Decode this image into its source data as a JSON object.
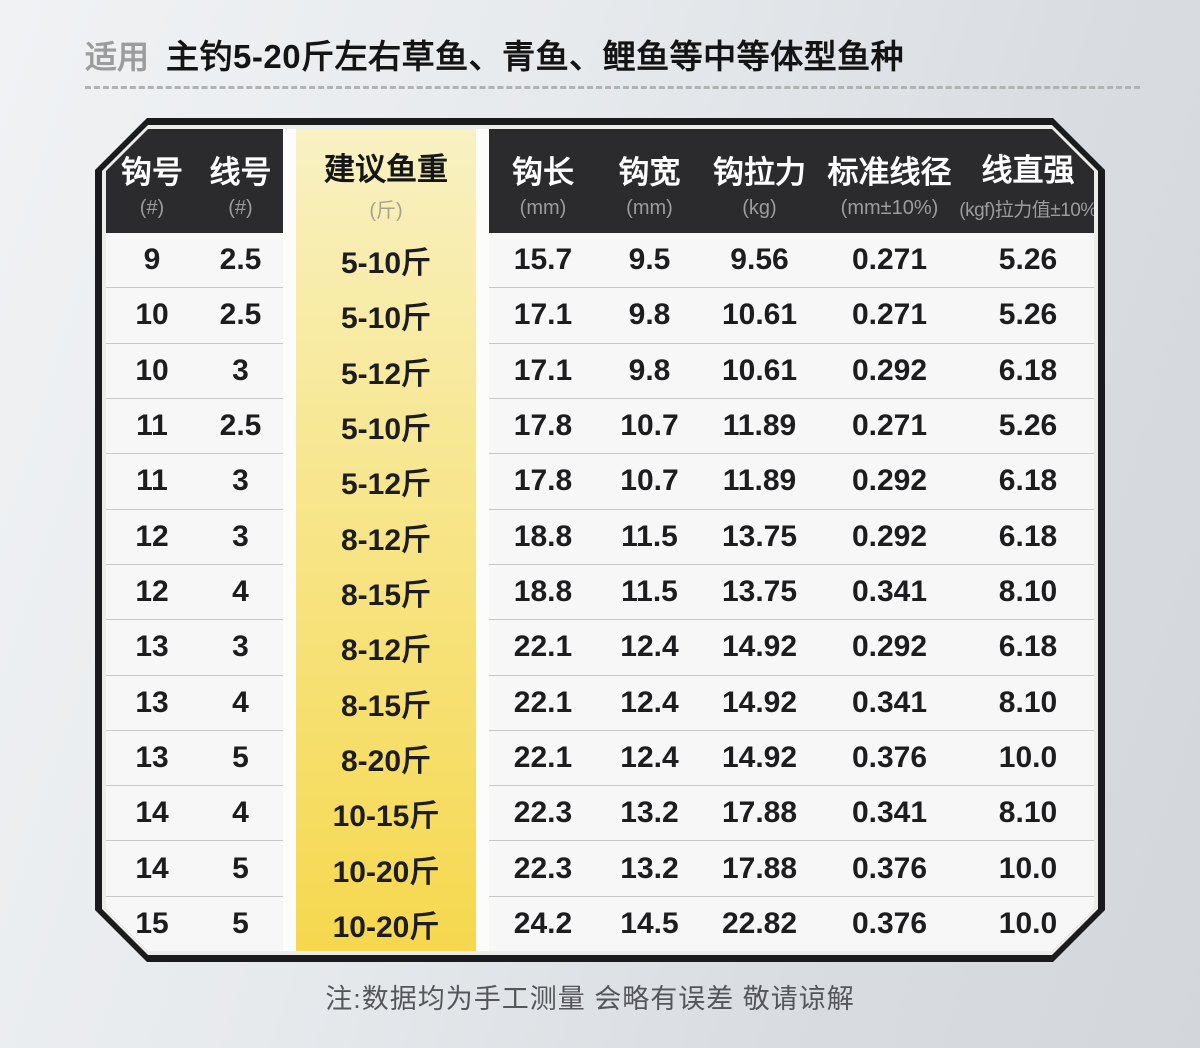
{
  "header": {
    "tag": "适用",
    "title": "主钓5-20斤左右草鱼、青鱼、鲤鱼等中等体型鱼种"
  },
  "footer": {
    "note": "注:数据均为手工测量 会略有误差 敬请谅解"
  },
  "colors": {
    "header_bg": "#2b2b2e",
    "frame": "#1b1b1e",
    "highlight_top": "#f8f1c2",
    "highlight_bottom": "#f6d84e"
  },
  "chart_data": {
    "type": "table",
    "title": "主钓5-20斤左右草鱼、青鱼、鲤鱼等中等体型鱼种",
    "highlight_column": "建议鱼重",
    "columns": [
      {
        "label": "钩号",
        "unit": "(#)"
      },
      {
        "label": "线号",
        "unit": "(#)"
      },
      {
        "label": "建议鱼重",
        "unit": "(斤)"
      },
      {
        "label": "钩长",
        "unit": "(mm)"
      },
      {
        "label": "钩宽",
        "unit": "(mm)"
      },
      {
        "label": "钩拉力",
        "unit": "(kg)"
      },
      {
        "label": "标准线径",
        "unit": "(mm±10%)"
      },
      {
        "label": "线直强",
        "unit": "(kgf)拉力值±10%"
      }
    ],
    "rows": [
      [
        "9",
        "2.5",
        "5-10斤",
        "15.7",
        "9.5",
        "9.56",
        "0.271",
        "5.26"
      ],
      [
        "10",
        "2.5",
        "5-10斤",
        "17.1",
        "9.8",
        "10.61",
        "0.271",
        "5.26"
      ],
      [
        "10",
        "3",
        "5-12斤",
        "17.1",
        "9.8",
        "10.61",
        "0.292",
        "6.18"
      ],
      [
        "11",
        "2.5",
        "5-10斤",
        "17.8",
        "10.7",
        "11.89",
        "0.271",
        "5.26"
      ],
      [
        "11",
        "3",
        "5-12斤",
        "17.8",
        "10.7",
        "11.89",
        "0.292",
        "6.18"
      ],
      [
        "12",
        "3",
        "8-12斤",
        "18.8",
        "11.5",
        "13.75",
        "0.292",
        "6.18"
      ],
      [
        "12",
        "4",
        "8-15斤",
        "18.8",
        "11.5",
        "13.75",
        "0.341",
        "8.10"
      ],
      [
        "13",
        "3",
        "8-12斤",
        "22.1",
        "12.4",
        "14.92",
        "0.292",
        "6.18"
      ],
      [
        "13",
        "4",
        "8-15斤",
        "22.1",
        "12.4",
        "14.92",
        "0.341",
        "8.10"
      ],
      [
        "13",
        "5",
        "8-20斤",
        "22.1",
        "12.4",
        "14.92",
        "0.376",
        "10.0"
      ],
      [
        "14",
        "4",
        "10-15斤",
        "22.3",
        "13.2",
        "17.88",
        "0.341",
        "8.10"
      ],
      [
        "14",
        "5",
        "10-20斤",
        "22.3",
        "13.2",
        "17.88",
        "0.376",
        "10.0"
      ],
      [
        "15",
        "5",
        "10-20斤",
        "24.2",
        "14.5",
        "22.82",
        "0.376",
        "10.0"
      ]
    ]
  }
}
